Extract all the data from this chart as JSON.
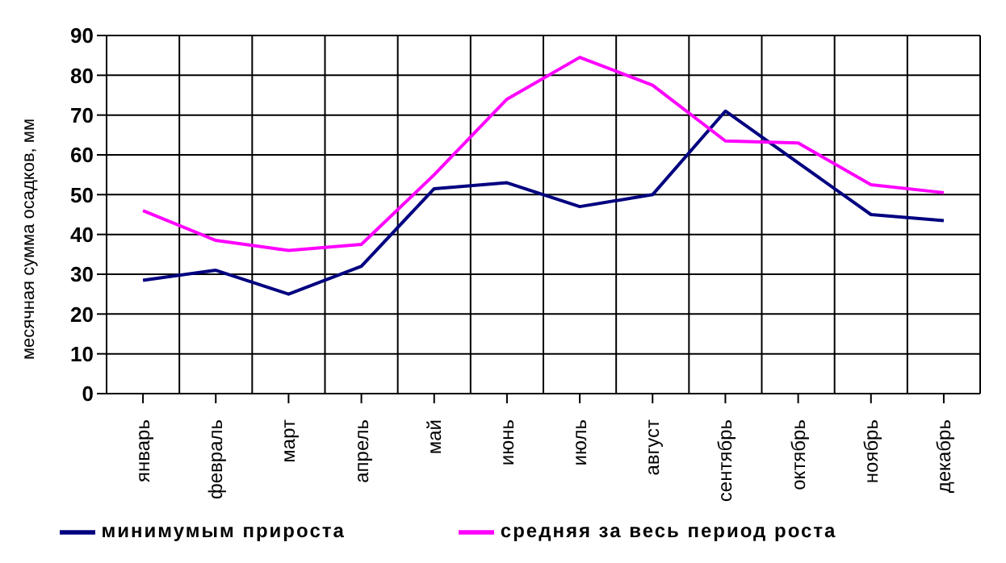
{
  "chart_data": {
    "type": "line",
    "ylabel": "месячная сумма осадков, мм",
    "categories": [
      "январь",
      "февраль",
      "март",
      "апрель",
      "май",
      "июнь",
      "июль",
      "август",
      "сентябрь",
      "октябрь",
      "ноябрь",
      "декабрь"
    ],
    "series": [
      {
        "name": "минимумым прироста",
        "color": "#000080",
        "values": [
          28.5,
          31,
          25,
          32,
          51.5,
          53,
          47,
          50,
          71,
          58,
          45,
          43.5
        ]
      },
      {
        "name": "средняя за весь период роста",
        "color": "#ff00ff",
        "values": [
          46,
          38.5,
          36,
          37.5,
          55,
          74,
          84.5,
          77.5,
          63.5,
          63,
          52.5,
          50.5
        ]
      }
    ],
    "ylim": [
      0,
      90
    ],
    "yticks": [
      0,
      10,
      20,
      30,
      40,
      50,
      60,
      70,
      80,
      90
    ],
    "grid": true,
    "legend": "bottom",
    "marker": "none",
    "line_style": "solid"
  }
}
